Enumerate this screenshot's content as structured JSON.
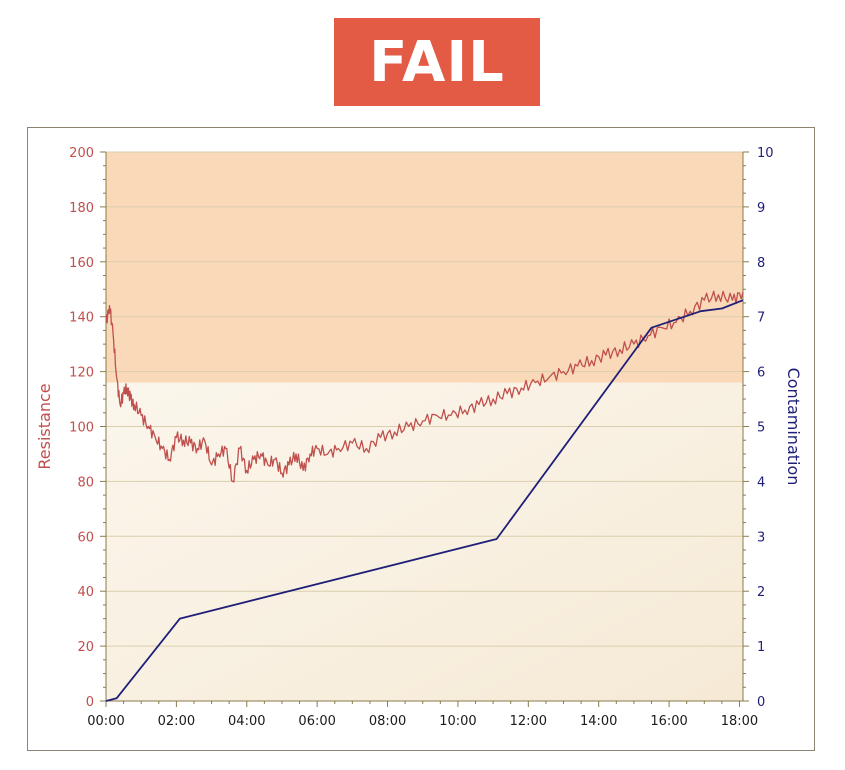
{
  "badge": {
    "label": "FAIL",
    "color": "#e35a45"
  },
  "chart_data": {
    "type": "line",
    "title": "",
    "xlabel": "",
    "x_ticks": [
      "00:00",
      "02:00",
      "04:00",
      "06:00",
      "08:00",
      "10:00",
      "12:00",
      "14:00",
      "16:00",
      "18:00"
    ],
    "xlim_hours": [
      0,
      18.1
    ],
    "y_left": {
      "label": "Resistance",
      "ylim": [
        0,
        200
      ],
      "ticks": [
        "0",
        "20",
        "40",
        "60",
        "80",
        "100",
        "120",
        "140",
        "160",
        "180",
        "200"
      ],
      "color": "#c0504d"
    },
    "y_right": {
      "label": "Contamination",
      "ylim": [
        0,
        10
      ],
      "ticks": [
        "0",
        "1",
        "2",
        "3",
        "4",
        "5",
        "6",
        "7",
        "8",
        "9",
        "10"
      ],
      "color": "#1f1f7a"
    },
    "fail_zone": {
      "axis": "left",
      "from": 116,
      "to": 200,
      "color": "#fad9b8"
    },
    "safe_zone_color": "#f8f1e4",
    "grid": "horizontal",
    "series": [
      {
        "name": "Resistance",
        "axis": "left",
        "color": "#c0504d",
        "x_hours": [
          0,
          0.1,
          0.2,
          0.3,
          0.4,
          0.5,
          0.6,
          0.7,
          0.8,
          1.0,
          1.2,
          1.4,
          1.6,
          1.8,
          2.0,
          2.2,
          2.4,
          2.6,
          2.8,
          3.0,
          3.2,
          3.4,
          3.6,
          3.8,
          4.0,
          4.2,
          4.4,
          4.6,
          4.8,
          5.0,
          5.2,
          5.4,
          5.6,
          5.8,
          6.0,
          6.3,
          6.6,
          7.0,
          7.4,
          7.8,
          8.2,
          8.6,
          9.0,
          9.4,
          9.8,
          10.2,
          10.6,
          11.0,
          11.4,
          11.8,
          12.2,
          12.6,
          13.0,
          13.4,
          13.8,
          14.2,
          14.6,
          15.0,
          15.4,
          15.8,
          16.2,
          16.6,
          17.0,
          17.4,
          17.8,
          18.1
        ],
        "values": [
          138,
          144,
          134,
          118,
          108,
          112,
          114,
          110,
          108,
          104,
          100,
          96,
          92,
          88,
          96,
          95,
          94,
          92,
          95,
          86,
          90,
          92,
          80,
          92,
          84,
          88,
          90,
          86,
          88,
          83,
          86,
          90,
          84,
          90,
          92,
          90,
          92,
          94,
          92,
          96,
          98,
          100,
          102,
          104,
          104,
          106,
          108,
          110,
          112,
          114,
          116,
          118,
          120,
          122,
          124,
          126,
          128,
          130,
          133,
          136,
          138,
          142,
          146,
          148,
          146,
          149
        ]
      },
      {
        "name": "Contamination",
        "axis": "right",
        "color": "#1f1f7a",
        "x_hours": [
          0,
          0.3,
          2.1,
          11.1,
          15.5,
          16.9,
          17.5,
          18.1
        ],
        "values": [
          0,
          0.05,
          1.5,
          2.95,
          6.8,
          7.1,
          7.15,
          7.3
        ]
      }
    ]
  }
}
